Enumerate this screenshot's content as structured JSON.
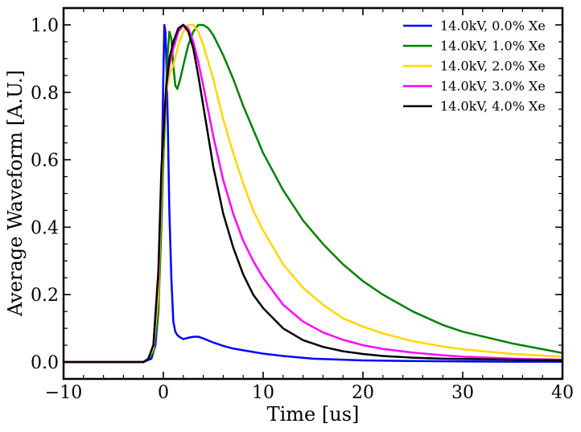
{
  "chart_data": {
    "type": "line",
    "title": "",
    "xlabel": "Time [us]",
    "ylabel": "Average Waveform [A.U.]",
    "xlim": [
      -10,
      40
    ],
    "ylim": [
      -0.05,
      1.05
    ],
    "xticks": [
      -10,
      0,
      10,
      20,
      30,
      40
    ],
    "xtick_labels": [
      "−10",
      "0",
      "10",
      "20",
      "30",
      "40"
    ],
    "yticks": [
      0.0,
      0.2,
      0.4,
      0.6,
      0.8,
      1.0
    ],
    "ytick_labels": [
      "0.0",
      "0.2",
      "0.4",
      "0.6",
      "0.8",
      "1.0"
    ],
    "grid": false,
    "legend_position": "top-right",
    "series": [
      {
        "name": "14.0kV, 0.0% Xe",
        "color": "#0000ff",
        "x": [
          -10,
          -2,
          -1.2,
          -0.8,
          -0.5,
          -0.2,
          0.0,
          0.1,
          0.2,
          0.3,
          0.45,
          0.6,
          0.8,
          1.0,
          1.2,
          1.4,
          1.6,
          2.0,
          2.5,
          3.0,
          3.5,
          4.0,
          5,
          6,
          7,
          8,
          9,
          10,
          12,
          15,
          20,
          25,
          30,
          35,
          40
        ],
        "y": [
          0.0,
          0.0,
          0.01,
          0.05,
          0.15,
          0.5,
          0.85,
          1.0,
          0.98,
          0.9,
          0.7,
          0.45,
          0.25,
          0.12,
          0.09,
          0.08,
          0.075,
          0.068,
          0.072,
          0.075,
          0.075,
          0.07,
          0.058,
          0.048,
          0.04,
          0.035,
          0.03,
          0.025,
          0.018,
          0.01,
          0.005,
          0.003,
          0.002,
          0.001,
          0.001
        ]
      },
      {
        "name": "14.0kV, 1.0% Xe",
        "color": "#008000",
        "x": [
          -10,
          -2,
          -1.5,
          -1.0,
          -0.5,
          -0.2,
          0.0,
          0.2,
          0.4,
          0.6,
          0.8,
          1.0,
          1.2,
          1.4,
          1.7,
          2.0,
          2.5,
          3.0,
          3.5,
          4.0,
          4.5,
          5,
          6,
          7,
          8,
          9,
          10,
          12,
          14,
          16,
          18,
          20,
          22,
          25,
          28,
          30,
          35,
          40
        ],
        "y": [
          0.0,
          0.0,
          0.01,
          0.03,
          0.15,
          0.4,
          0.6,
          0.75,
          0.9,
          0.98,
          0.96,
          0.88,
          0.82,
          0.81,
          0.84,
          0.88,
          0.94,
          0.98,
          1.0,
          1.0,
          0.99,
          0.97,
          0.91,
          0.84,
          0.76,
          0.69,
          0.62,
          0.51,
          0.42,
          0.35,
          0.29,
          0.24,
          0.2,
          0.15,
          0.11,
          0.09,
          0.055,
          0.027
        ]
      },
      {
        "name": "14.0kV, 2.0% Xe",
        "color": "#ffd700",
        "x": [
          -10,
          -2,
          -1.5,
          -1.0,
          -0.5,
          -0.2,
          0.0,
          0.3,
          0.6,
          1.0,
          1.5,
          2.0,
          2.5,
          3.0,
          3.5,
          4.0,
          5,
          6,
          7,
          8,
          9,
          10,
          12,
          14,
          16,
          18,
          20,
          22,
          25,
          28,
          30,
          35,
          40
        ],
        "y": [
          0.0,
          0.0,
          0.01,
          0.04,
          0.2,
          0.5,
          0.68,
          0.8,
          0.85,
          0.88,
          0.94,
          0.98,
          1.0,
          1.0,
          0.98,
          0.94,
          0.84,
          0.72,
          0.62,
          0.53,
          0.45,
          0.39,
          0.29,
          0.22,
          0.17,
          0.13,
          0.105,
          0.085,
          0.062,
          0.046,
          0.038,
          0.024,
          0.016
        ]
      },
      {
        "name": "14.0kV, 3.0% Xe",
        "color": "#ff00ff",
        "x": [
          -10,
          -2,
          -1.5,
          -1.0,
          -0.5,
          -0.2,
          0.0,
          0.3,
          0.6,
          1.0,
          1.5,
          2.0,
          2.5,
          3.0,
          3.5,
          4.0,
          5,
          6,
          7,
          8,
          9,
          10,
          12,
          14,
          16,
          18,
          20,
          22,
          25,
          28,
          30,
          35,
          40
        ],
        "y": [
          0.0,
          0.0,
          0.01,
          0.05,
          0.25,
          0.55,
          0.7,
          0.82,
          0.88,
          0.93,
          0.98,
          1.0,
          0.99,
          0.95,
          0.89,
          0.82,
          0.67,
          0.54,
          0.44,
          0.36,
          0.3,
          0.25,
          0.17,
          0.12,
          0.088,
          0.066,
          0.05,
          0.039,
          0.028,
          0.02,
          0.016,
          0.01,
          0.007
        ]
      },
      {
        "name": "14.0kV, 4.0% Xe",
        "color": "#000000",
        "x": [
          -10,
          -2,
          -1.5,
          -1.0,
          -0.5,
          -0.2,
          0.0,
          0.3,
          0.6,
          1.0,
          1.5,
          2.0,
          2.5,
          3.0,
          3.5,
          4.0,
          5,
          6,
          7,
          8,
          9,
          10,
          12,
          14,
          16,
          18,
          20,
          22,
          25,
          28,
          30,
          35,
          40
        ],
        "y": [
          0.0,
          0.0,
          0.01,
          0.05,
          0.27,
          0.57,
          0.68,
          0.82,
          0.9,
          0.95,
          0.99,
          1.0,
          0.98,
          0.93,
          0.85,
          0.76,
          0.58,
          0.44,
          0.34,
          0.26,
          0.2,
          0.16,
          0.1,
          0.065,
          0.045,
          0.032,
          0.024,
          0.018,
          0.013,
          0.01,
          0.009,
          0.007,
          0.005
        ]
      }
    ]
  }
}
